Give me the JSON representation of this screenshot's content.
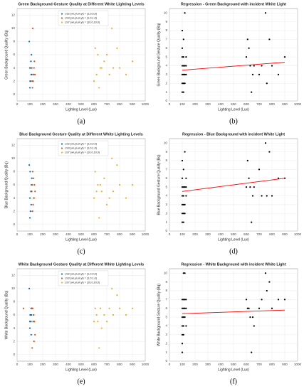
{
  "chart_data": [
    {
      "type": "scatter",
      "caption": "(a)",
      "title": "Green Background Gesture Quality at Different White Lighting Levels",
      "xlabel": "Lighting Level (Lux)",
      "ylabel": "Green Background Quality (Bq)",
      "xlim": [
        0,
        1000
      ],
      "ylim": [
        -1,
        13
      ],
      "xticks": [
        0,
        100,
        200,
        300,
        400,
        500,
        600,
        700,
        800,
        900,
        1000
      ],
      "yticks": [
        0,
        2,
        4,
        6,
        8,
        10,
        12
      ],
      "grid": true,
      "legend": "upper left",
      "series": [
        {
          "name": "LS2 (wr,yr,wl,yl) = (1,0,0,0)",
          "color": "#0072bd",
          "x": [
            100,
            105,
            110,
            100,
            108,
            112,
            95,
            115,
            102,
            110
          ],
          "values": [
            1,
            2,
            3,
            4,
            5,
            6,
            8,
            3,
            2,
            4
          ]
        },
        {
          "name": "LS3 (wr,yr,wl,yl) = (1,0,1,0)",
          "color": "#d95319",
          "x": [
            120,
            125,
            130,
            115,
            135,
            128,
            122,
            140,
            118,
            132
          ],
          "values": [
            1,
            2,
            3,
            4,
            5,
            3,
            10,
            3,
            2,
            4
          ]
        },
        {
          "name": "LS7 (wr,yr,wl,yl) = (10,0,10,0)",
          "color": "#edb120",
          "x": [
            600,
            620,
            650,
            680,
            700,
            720,
            750,
            780,
            800,
            850,
            900,
            640,
            660,
            740,
            610,
            630
          ],
          "values": [
            2,
            3,
            4,
            5,
            6,
            3,
            4,
            7,
            4,
            3,
            5,
            1,
            4,
            10,
            7,
            6
          ]
        }
      ]
    },
    {
      "type": "scatter",
      "caption": "(b)",
      "title": "Regression - Green Background with incident White Light",
      "xlabel": "Lighting Level (Lux)",
      "ylabel": "Green Background Gesture Quality (Bq)",
      "xlim": [
        0,
        1000
      ],
      "ylim": [
        0,
        10.5
      ],
      "xticks": [
        0,
        100,
        200,
        300,
        400,
        500,
        600,
        700,
        800,
        900,
        1000
      ],
      "yticks": [
        0,
        1,
        2,
        3,
        4,
        5,
        6,
        7,
        8,
        9,
        10
      ],
      "grid": true,
      "series": [
        {
          "color": "#000000",
          "mode": "markers",
          "x": [
            100,
            100,
            100,
            100,
            100,
            100,
            100,
            110,
            110,
            110,
            110,
            110,
            110,
            120,
            120,
            120,
            120,
            130,
            130,
            130,
            600,
            620,
            640,
            650,
            660,
            700,
            720,
            750,
            780,
            800,
            850,
            900,
            610,
            630,
            760
          ],
          "values": [
            1,
            2,
            3,
            4,
            5,
            6,
            8,
            1,
            2,
            3,
            4,
            5,
            7,
            2,
            3,
            4,
            10,
            3,
            4,
            5,
            5,
            6,
            1,
            3,
            4,
            3,
            4,
            10,
            7,
            4,
            3,
            5,
            7,
            4,
            2
          ]
        },
        {
          "color": "#ff0000",
          "mode": "line",
          "x": [
            100,
            900
          ],
          "values": [
            3.5,
            4.4
          ]
        }
      ]
    },
    {
      "type": "scatter",
      "caption": "(c)",
      "title": "Blue Background Gesture Quality at Different White Lighting Levels",
      "xlabel": "Lighting Level (Lux)",
      "ylabel": "Blue Background Quality (Bq)",
      "xlim": [
        0,
        1000
      ],
      "ylim": [
        -1,
        13
      ],
      "xticks": [
        0,
        100,
        200,
        300,
        400,
        500,
        600,
        700,
        800,
        900,
        1000
      ],
      "yticks": [
        0,
        2,
        4,
        6,
        8,
        10,
        12
      ],
      "grid": true,
      "legend": "upper left",
      "series": [
        {
          "name": "LS2 (wr,yr,wl,yl) = (1,0,0,0)",
          "color": "#0072bd",
          "x": [
            100,
            105,
            110,
            100,
            108,
            112,
            95,
            115,
            102,
            110
          ],
          "values": [
            1,
            2,
            3,
            4,
            5,
            6,
            9,
            7,
            8,
            5
          ]
        },
        {
          "name": "LS3 (wr,yr,wl,yl) = (1,0,1,0)",
          "color": "#d95319",
          "x": [
            120,
            125,
            130,
            115,
            135,
            128,
            122,
            140,
            118,
            132
          ],
          "values": [
            2,
            3,
            4,
            5,
            6,
            7,
            8,
            5,
            6,
            4
          ]
        },
        {
          "name": "LS7 (wr,yr,wl,yl) = (10,0,10,0)",
          "color": "#edb120",
          "x": [
            600,
            620,
            650,
            680,
            700,
            720,
            750,
            780,
            800,
            850,
            900,
            640,
            660,
            740,
            610,
            630
          ],
          "values": [
            4,
            5,
            6,
            7,
            3,
            4,
            5,
            9,
            6,
            4,
            6,
            1,
            5,
            10,
            8,
            6
          ]
        }
      ]
    },
    {
      "type": "scatter",
      "caption": "(d)",
      "title": "Regression - Blue Background with incident White Light",
      "xlabel": "Lighting Level (Lux)",
      "ylabel": "Blue Background Gesture Quality (Bq)",
      "xlim": [
        0,
        1000
      ],
      "ylim": [
        0,
        10.5
      ],
      "xticks": [
        0,
        100,
        200,
        300,
        400,
        500,
        600,
        700,
        800,
        900,
        1000
      ],
      "yticks": [
        0,
        1,
        2,
        3,
        4,
        5,
        6,
        7,
        8,
        9,
        10
      ],
      "grid": true,
      "series": [
        {
          "color": "#000000",
          "mode": "markers",
          "x": [
            100,
            100,
            100,
            100,
            100,
            100,
            100,
            110,
            110,
            110,
            110,
            110,
            110,
            120,
            120,
            120,
            120,
            130,
            130,
            130,
            600,
            620,
            640,
            650,
            660,
            700,
            720,
            750,
            780,
            800,
            850,
            900,
            610,
            630,
            760
          ],
          "values": [
            1,
            2,
            3,
            4,
            5,
            6,
            8,
            1,
            2,
            3,
            4,
            5,
            7,
            2,
            3,
            9,
            5,
            4,
            6,
            5,
            5,
            6,
            1,
            4,
            5,
            7,
            4,
            10,
            9,
            4,
            6,
            6,
            8,
            5,
            4
          ]
        },
        {
          "color": "#ff0000",
          "mode": "line",
          "x": [
            100,
            900
          ],
          "values": [
            4.5,
            6.0
          ]
        }
      ]
    },
    {
      "type": "scatter",
      "caption": "(e)",
      "title": "White Background Gesture Quality at Different White Lighting Levels",
      "xlabel": "Lighting Level (Lux)",
      "ylabel": "White Background Quality (Bq)",
      "xlim": [
        0,
        1000
      ],
      "ylim": [
        -1,
        13
      ],
      "xticks": [
        0,
        100,
        200,
        300,
        400,
        500,
        600,
        700,
        800,
        900,
        1000
      ],
      "yticks": [
        0,
        2,
        4,
        6,
        8,
        10,
        12
      ],
      "grid": true,
      "legend": "upper left",
      "series": [
        {
          "name": "LS2 (wr,yr,wl,yl) = (1,0,0,0)",
          "color": "#0072bd",
          "x": [
            100,
            105,
            110,
            100,
            108,
            112,
            95,
            115,
            102,
            110
          ],
          "values": [
            5,
            6,
            7,
            4,
            5,
            6,
            10,
            7,
            6,
            3
          ]
        },
        {
          "name": "LS3 (wr,yr,wl,yl) = (1,0,1,0)",
          "color": "#d95319",
          "x": [
            50,
            125,
            130,
            115,
            135,
            128,
            122,
            140,
            118,
            132
          ],
          "values": [
            7,
            5,
            6,
            7,
            5,
            6,
            7,
            3,
            1,
            2
          ]
        },
        {
          "name": "LS7 (wr,yr,wl,yl) = (10,0,10,0)",
          "color": "#edb120",
          "x": [
            600,
            620,
            650,
            680,
            700,
            720,
            750,
            780,
            800,
            850,
            900,
            640,
            660,
            740,
            610,
            630
          ],
          "values": [
            5,
            6,
            7,
            6,
            5,
            7,
            6,
            9,
            7,
            6,
            7,
            1,
            4,
            10,
            7,
            5
          ]
        }
      ]
    },
    {
      "type": "scatter",
      "caption": "(f)",
      "title": "Regression - White Background with incident White Light",
      "xlabel": "Lighting Level (Lux)",
      "ylabel": "White Background Gesture Quality (Bq)",
      "xlim": [
        0,
        1000
      ],
      "ylim": [
        0,
        10.5
      ],
      "xticks": [
        0,
        100,
        200,
        300,
        400,
        500,
        600,
        700,
        800,
        900,
        1000
      ],
      "yticks": [
        0,
        1,
        2,
        3,
        4,
        5,
        6,
        7,
        8,
        9,
        10
      ],
      "grid": true,
      "series": [
        {
          "color": "#000000",
          "mode": "markers",
          "x": [
            100,
            100,
            100,
            100,
            100,
            100,
            100,
            110,
            110,
            110,
            110,
            110,
            110,
            120,
            120,
            120,
            120,
            130,
            130,
            130,
            600,
            620,
            640,
            650,
            660,
            700,
            720,
            750,
            780,
            800,
            850,
            900,
            610,
            630,
            760
          ],
          "values": [
            1,
            2,
            3,
            4,
            5,
            6,
            7,
            4,
            5,
            6,
            7,
            10,
            3,
            5,
            6,
            7,
            10,
            4,
            6,
            7,
            7,
            6,
            1,
            5,
            4,
            6,
            7,
            10,
            9,
            6,
            7,
            7,
            6,
            5,
            8
          ]
        },
        {
          "color": "#ff0000",
          "mode": "line",
          "x": [
            100,
            900
          ],
          "values": [
            5.4,
            5.8
          ]
        }
      ]
    }
  ]
}
